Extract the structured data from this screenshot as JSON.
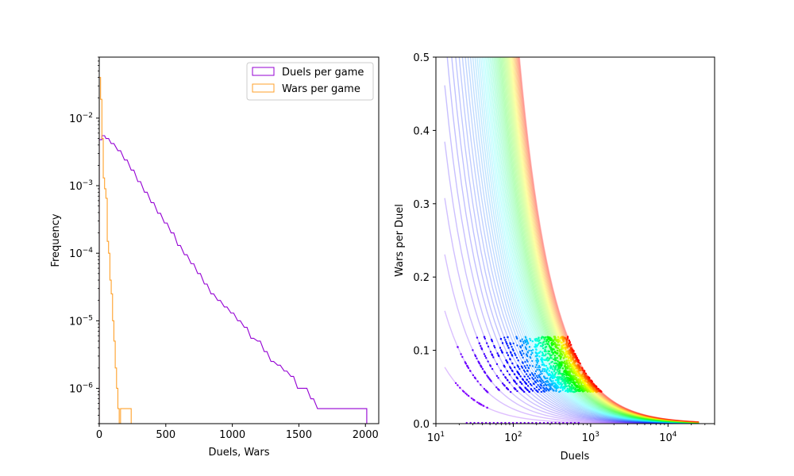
{
  "chart_data": [
    {
      "type": "histogram",
      "xlabel": "Duels, Wars",
      "ylabel": "Frequency",
      "xlim": [
        0,
        2100
      ],
      "ylim": [
        3e-07,
        0.08
      ],
      "yscale": "log",
      "x_ticks": [
        0,
        500,
        1000,
        1500,
        2000
      ],
      "y_ticks": [
        {
          "value": 1e-06,
          "base": "10",
          "exp": "−6"
        },
        {
          "value": 1e-05,
          "base": "10",
          "exp": "−5"
        },
        {
          "value": 0.0001,
          "base": "10",
          "exp": "−4"
        },
        {
          "value": 0.001,
          "base": "10",
          "exp": "−3"
        },
        {
          "value": 0.01,
          "base": "10",
          "exp": "−2"
        }
      ],
      "legend": {
        "position": "upper right"
      },
      "series": [
        {
          "name": "Duels per game",
          "color": "#9400d3",
          "points": [
            [
              10,
              0.0048
            ],
            [
              30,
              0.0055
            ],
            [
              60,
              0.005
            ],
            [
              100,
              0.0042
            ],
            [
              150,
              0.0033
            ],
            [
              200,
              0.0024
            ],
            [
              250,
              0.0017
            ],
            [
              300,
              0.00115
            ],
            [
              350,
              0.0008
            ],
            [
              400,
              0.00056
            ],
            [
              450,
              0.00039
            ],
            [
              500,
              0.00028
            ],
            [
              550,
              0.0002
            ],
            [
              600,
              0.00013
            ],
            [
              650,
              9.5e-05
            ],
            [
              700,
              7e-05
            ],
            [
              750,
              5e-05
            ],
            [
              800,
              3.5e-05
            ],
            [
              850,
              2.5e-05
            ],
            [
              900,
              2e-05
            ],
            [
              950,
              1.6e-05
            ],
            [
              1000,
              1.3e-05
            ],
            [
              1050,
              1e-05
            ],
            [
              1100,
              8e-06
            ],
            [
              1150,
              5.5e-06
            ],
            [
              1200,
              5e-06
            ],
            [
              1250,
              3.5e-06
            ],
            [
              1300,
              2.5e-06
            ],
            [
              1350,
              2.2e-06
            ],
            [
              1400,
              1.8e-06
            ],
            [
              1450,
              1.5e-06
            ],
            [
              1500,
              1e-06
            ],
            [
              1550,
              1e-06
            ],
            [
              1600,
              7e-07
            ],
            [
              1650,
              5e-07
            ],
            [
              1700,
              5e-07
            ],
            [
              1750,
              5e-07
            ],
            [
              1800,
              5e-07
            ],
            [
              1850,
              5e-07
            ],
            [
              1900,
              5e-07
            ],
            [
              1950,
              5e-07
            ],
            [
              2000,
              5e-07
            ]
          ]
        },
        {
          "name": "Wars per game",
          "color": "#ffa12b",
          "points": [
            [
              5,
              0.04
            ],
            [
              15,
              0.019
            ],
            [
              25,
              0.005
            ],
            [
              35,
              0.0013
            ],
            [
              45,
              0.0009
            ],
            [
              55,
              0.00065
            ],
            [
              65,
              0.00015
            ],
            [
              75,
              0.0001
            ],
            [
              85,
              4e-05
            ],
            [
              95,
              2.5e-05
            ],
            [
              105,
              1e-05
            ],
            [
              115,
              5e-06
            ],
            [
              125,
              2e-06
            ],
            [
              135,
              1e-06
            ],
            [
              145,
              5e-07
            ],
            [
              155,
              3e-07
            ],
            [
              165,
              5e-07
            ],
            [
              175,
              5e-07
            ],
            [
              185,
              5e-07
            ],
            [
              195,
              5e-07
            ],
            [
              205,
              5e-07
            ],
            [
              215,
              5e-07
            ],
            [
              225,
              5e-07
            ],
            [
              235,
              5e-07
            ]
          ]
        }
      ]
    },
    {
      "type": "scatter",
      "xlabel": "Duels",
      "ylabel": "Wars per Duel",
      "xscale": "log",
      "xlim": [
        10,
        40000
      ],
      "ylim": [
        0,
        0.5
      ],
      "x_ticks": [
        {
          "value": 10,
          "base": "10",
          "exp": "1"
        },
        {
          "value": 100,
          "base": "10",
          "exp": "2"
        },
        {
          "value": 1000,
          "base": "10",
          "exp": "3"
        },
        {
          "value": 10000,
          "base": "10",
          "exp": "4"
        }
      ],
      "y_ticks": [
        "0.0",
        "0.1",
        "0.2",
        "0.3",
        "0.4",
        "0.5"
      ],
      "curves": {
        "wars_min": 1,
        "wars_max": 60,
        "x_end": 25000,
        "curve_alpha": 0.25
      },
      "point_clouds": {
        "wars_min": 1,
        "wars_max": 60,
        "point_alpha": 1.0
      }
    }
  ]
}
